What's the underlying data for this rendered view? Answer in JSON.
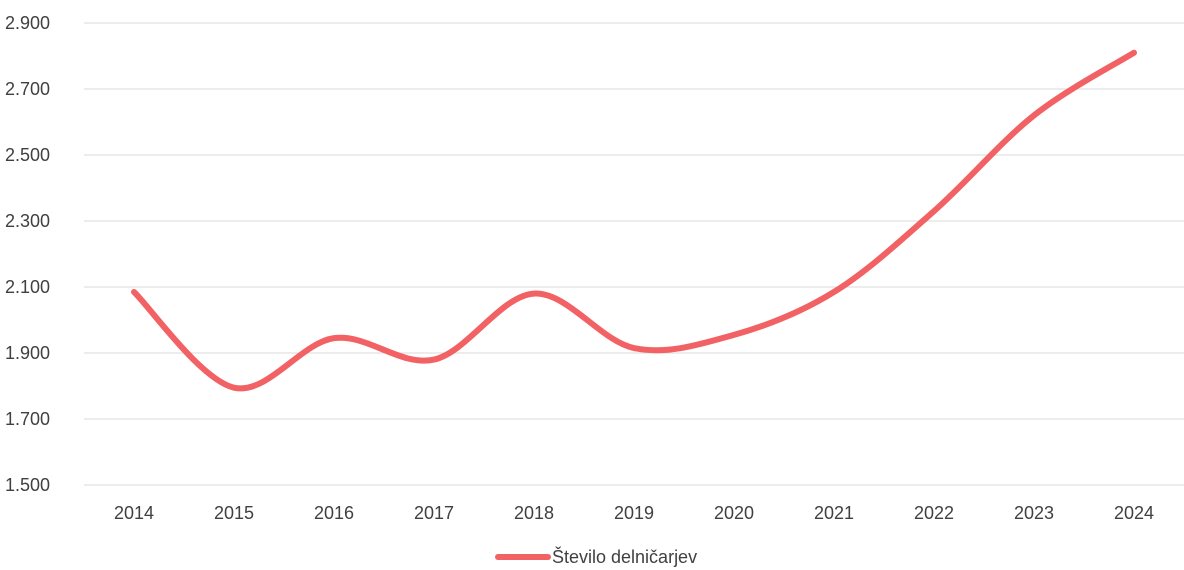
{
  "chart_data": {
    "type": "line",
    "title": "",
    "xlabel": "",
    "ylabel": "",
    "categories": [
      "2014",
      "2015",
      "2016",
      "2017",
      "2018",
      "2019",
      "2020",
      "2021",
      "2022",
      "2023",
      "2024"
    ],
    "series": [
      {
        "name": "Število delničarjev",
        "values": [
          2085,
          1795,
          1945,
          1880,
          2080,
          1915,
          1955,
          2085,
          2330,
          2620,
          2810
        ],
        "color": "#f26163",
        "smooth": true
      }
    ],
    "ylim": [
      1500,
      2900
    ],
    "yticks": [
      1500,
      1700,
      1900,
      2100,
      2300,
      2500,
      2700,
      2900
    ],
    "ytick_labels": [
      "1.500",
      "1.700",
      "1.900",
      "2.100",
      "2.300",
      "2.500",
      "2.700",
      "2.900"
    ],
    "grid": true,
    "legend_position": "bottom"
  }
}
